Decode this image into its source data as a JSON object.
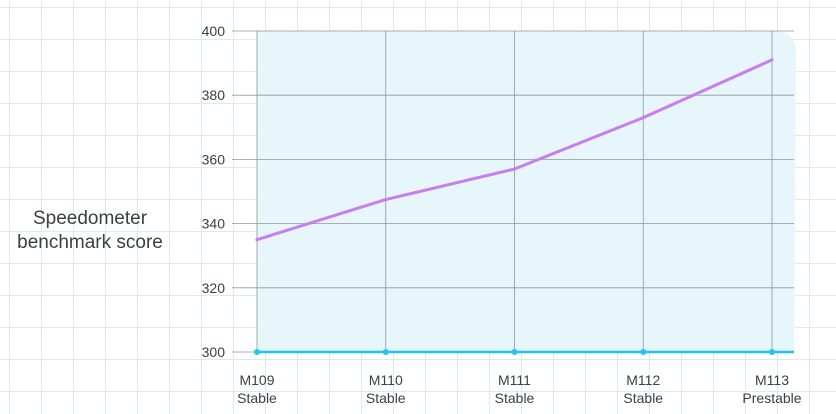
{
  "chart_data": {
    "type": "line",
    "ylabel_lines": [
      "Speedometer",
      "benchmark score"
    ],
    "categories": [
      [
        "M109",
        "Stable"
      ],
      [
        "M110",
        "Stable"
      ],
      [
        "M111",
        "Stable"
      ],
      [
        "M112",
        "Stable"
      ],
      [
        "M113",
        "Prestable"
      ]
    ],
    "series": [
      {
        "values": [
          335,
          347.5,
          357,
          373,
          391
        ]
      }
    ],
    "baseline": 300,
    "ylim": [
      300,
      400
    ],
    "yticks": [
      400,
      380,
      360,
      340,
      320,
      300
    ],
    "grid": true,
    "colors": {
      "line": "#c67ef0",
      "baseline": "#1ec6f0",
      "area": "#e6f6fb",
      "gridline": "#8f979e",
      "tick_text": "#3c4043"
    }
  }
}
